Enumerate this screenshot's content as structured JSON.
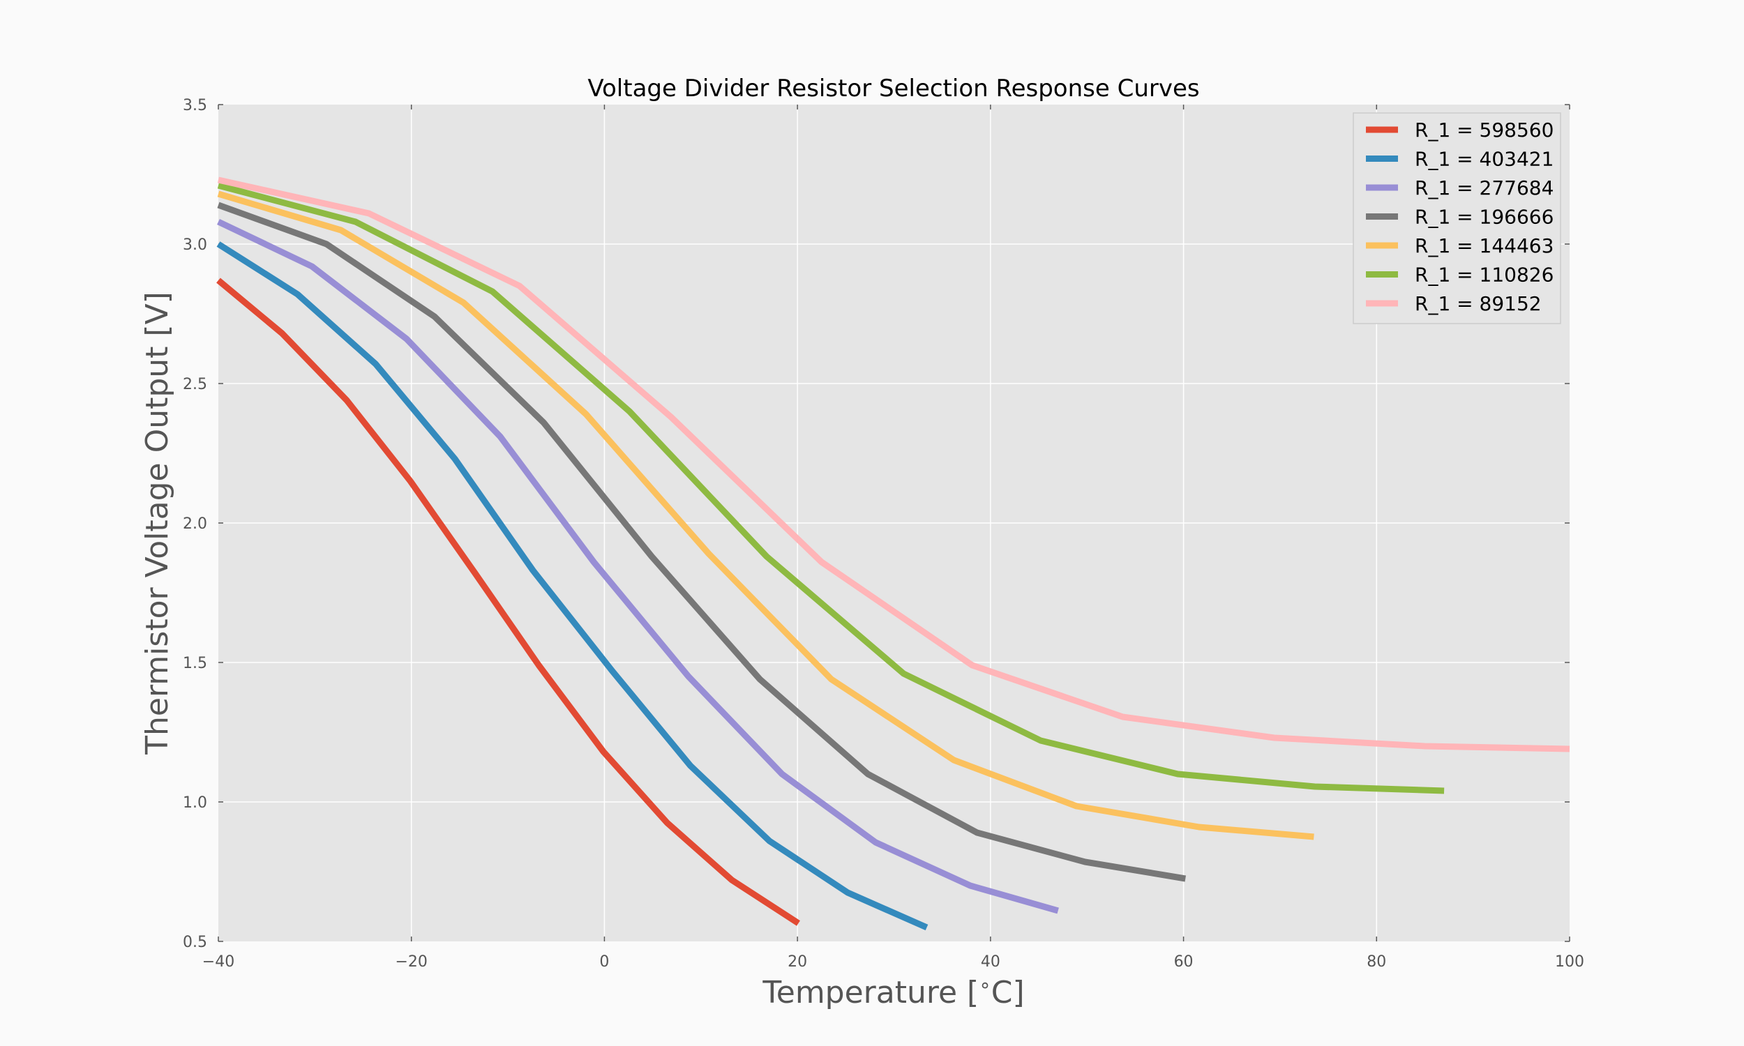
{
  "chart_data": {
    "type": "line",
    "title": "Voltage Divider Resistor Selection Response Curves",
    "xlabel": "Temperature [$^\\circ$C]",
    "ylabel": "Thermistor Voltage Output [V]",
    "xlim": [
      -40,
      100
    ],
    "ylim": [
      0.5,
      3.5
    ],
    "xticks": [
      -40,
      -20,
      0,
      20,
      40,
      60,
      80,
      100
    ],
    "xtick_labels": [
      "−40",
      "−20",
      "0",
      "20",
      "40",
      "60",
      "80",
      "100"
    ],
    "yticks": [
      0.5,
      1.0,
      1.5,
      2.0,
      2.5,
      3.0,
      3.5
    ],
    "ytick_labels": [
      "0.5",
      "1.0",
      "1.5",
      "2.0",
      "2.5",
      "3.0",
      "3.5"
    ],
    "grid": true,
    "legend_position": "top-right",
    "series": [
      {
        "name": "R_1 = 598560",
        "color": "#e24a33",
        "points": [
          [
            -40,
            2.87
          ],
          [
            -33.4,
            2.68
          ],
          [
            -26.7,
            2.44
          ],
          [
            -20.1,
            2.15
          ],
          [
            -13.4,
            1.82
          ],
          [
            -6.8,
            1.49
          ],
          [
            -0.1,
            1.18
          ],
          [
            6.5,
            0.925
          ],
          [
            13.2,
            0.72
          ],
          [
            20.1,
            0.565
          ]
        ]
      },
      {
        "name": "R_1 = 403421",
        "color": "#348abd",
        "points": [
          [
            -40,
            3.0
          ],
          [
            -31.8,
            2.82
          ],
          [
            -23.7,
            2.57
          ],
          [
            -15.5,
            2.23
          ],
          [
            -7.4,
            1.83
          ],
          [
            0.8,
            1.47
          ],
          [
            8.9,
            1.13
          ],
          [
            17.1,
            0.86
          ],
          [
            25.2,
            0.675
          ],
          [
            33.4,
            0.55
          ]
        ]
      },
      {
        "name": "R_1 = 277684",
        "color": "#988ed5",
        "points": [
          [
            -40,
            3.08
          ],
          [
            -30.3,
            2.92
          ],
          [
            -20.5,
            2.66
          ],
          [
            -10.8,
            2.31
          ],
          [
            -1.1,
            1.86
          ],
          [
            8.7,
            1.45
          ],
          [
            18.4,
            1.1
          ],
          [
            28.1,
            0.855
          ],
          [
            37.9,
            0.7
          ],
          [
            47.0,
            0.61
          ]
        ]
      },
      {
        "name": "R_1 = 196666",
        "color": "#777777",
        "points": [
          [
            -40,
            3.14
          ],
          [
            -28.8,
            3.0
          ],
          [
            -17.6,
            2.74
          ],
          [
            -6.3,
            2.36
          ],
          [
            4.9,
            1.88
          ],
          [
            16.1,
            1.44
          ],
          [
            27.3,
            1.1
          ],
          [
            38.6,
            0.89
          ],
          [
            49.8,
            0.785
          ],
          [
            60.2,
            0.725
          ]
        ]
      },
      {
        "name": "R_1 = 144463",
        "color": "#fbc15e",
        "points": [
          [
            -40,
            3.18
          ],
          [
            -27.3,
            3.05
          ],
          [
            -14.6,
            2.79
          ],
          [
            -1.9,
            2.39
          ],
          [
            10.8,
            1.89
          ],
          [
            23.5,
            1.44
          ],
          [
            36.2,
            1.15
          ],
          [
            48.9,
            0.985
          ],
          [
            61.6,
            0.91
          ],
          [
            73.5,
            0.875
          ]
        ]
      },
      {
        "name": "R_1 = 110826",
        "color": "#8eba42",
        "points": [
          [
            -40,
            3.21
          ],
          [
            -25.8,
            3.08
          ],
          [
            -11.6,
            2.83
          ],
          [
            2.6,
            2.4
          ],
          [
            16.8,
            1.88
          ],
          [
            31.0,
            1.46
          ],
          [
            45.2,
            1.22
          ],
          [
            59.4,
            1.1
          ],
          [
            73.6,
            1.055
          ],
          [
            87.0,
            1.04
          ]
        ]
      },
      {
        "name": "R_1 = 89152",
        "color": "#ffb5b8",
        "points": [
          [
            -40,
            3.23
          ],
          [
            -24.4,
            3.11
          ],
          [
            -8.8,
            2.85
          ],
          [
            6.9,
            2.38
          ],
          [
            22.5,
            1.86
          ],
          [
            38.1,
            1.49
          ],
          [
            53.7,
            1.305
          ],
          [
            69.4,
            1.23
          ],
          [
            85.0,
            1.2
          ],
          [
            100,
            1.19
          ]
        ]
      }
    ]
  }
}
